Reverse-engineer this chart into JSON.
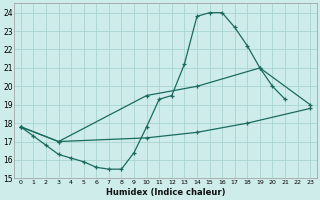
{
  "xlabel": "Humidex (Indice chaleur)",
  "background_color": "#ceecea",
  "grid_color": "#aad4d0",
  "line_color": "#1a6b5e",
  "xlim": [
    -0.5,
    23.5
  ],
  "ylim": [
    15,
    24.5
  ],
  "yticks": [
    15,
    16,
    17,
    18,
    19,
    20,
    21,
    22,
    23,
    24
  ],
  "xticks": [
    0,
    1,
    2,
    3,
    4,
    5,
    6,
    7,
    8,
    9,
    10,
    11,
    12,
    13,
    14,
    15,
    16,
    17,
    18,
    19,
    20,
    21,
    22,
    23
  ],
  "series": [
    {
      "x": [
        0,
        1,
        2,
        3,
        4,
        5,
        6,
        7,
        8,
        9,
        10,
        11,
        12,
        13,
        14,
        15,
        16,
        17,
        18,
        19,
        20,
        21
      ],
      "y": [
        17.8,
        17.3,
        16.8,
        16.3,
        16.1,
        15.9,
        15.6,
        15.5,
        15.5,
        16.4,
        17.8,
        19.3,
        19.5,
        21.2,
        23.8,
        24.0,
        24.0,
        23.2,
        22.2,
        21.0,
        20.0,
        19.3
      ]
    },
    {
      "x": [
        0,
        3,
        10,
        14,
        19,
        23
      ],
      "y": [
        17.8,
        17.0,
        19.5,
        20.0,
        21.0,
        19.0
      ]
    },
    {
      "x": [
        0,
        3,
        10,
        14,
        18,
        23
      ],
      "y": [
        17.8,
        17.0,
        17.2,
        17.5,
        18.0,
        18.8
      ]
    }
  ]
}
